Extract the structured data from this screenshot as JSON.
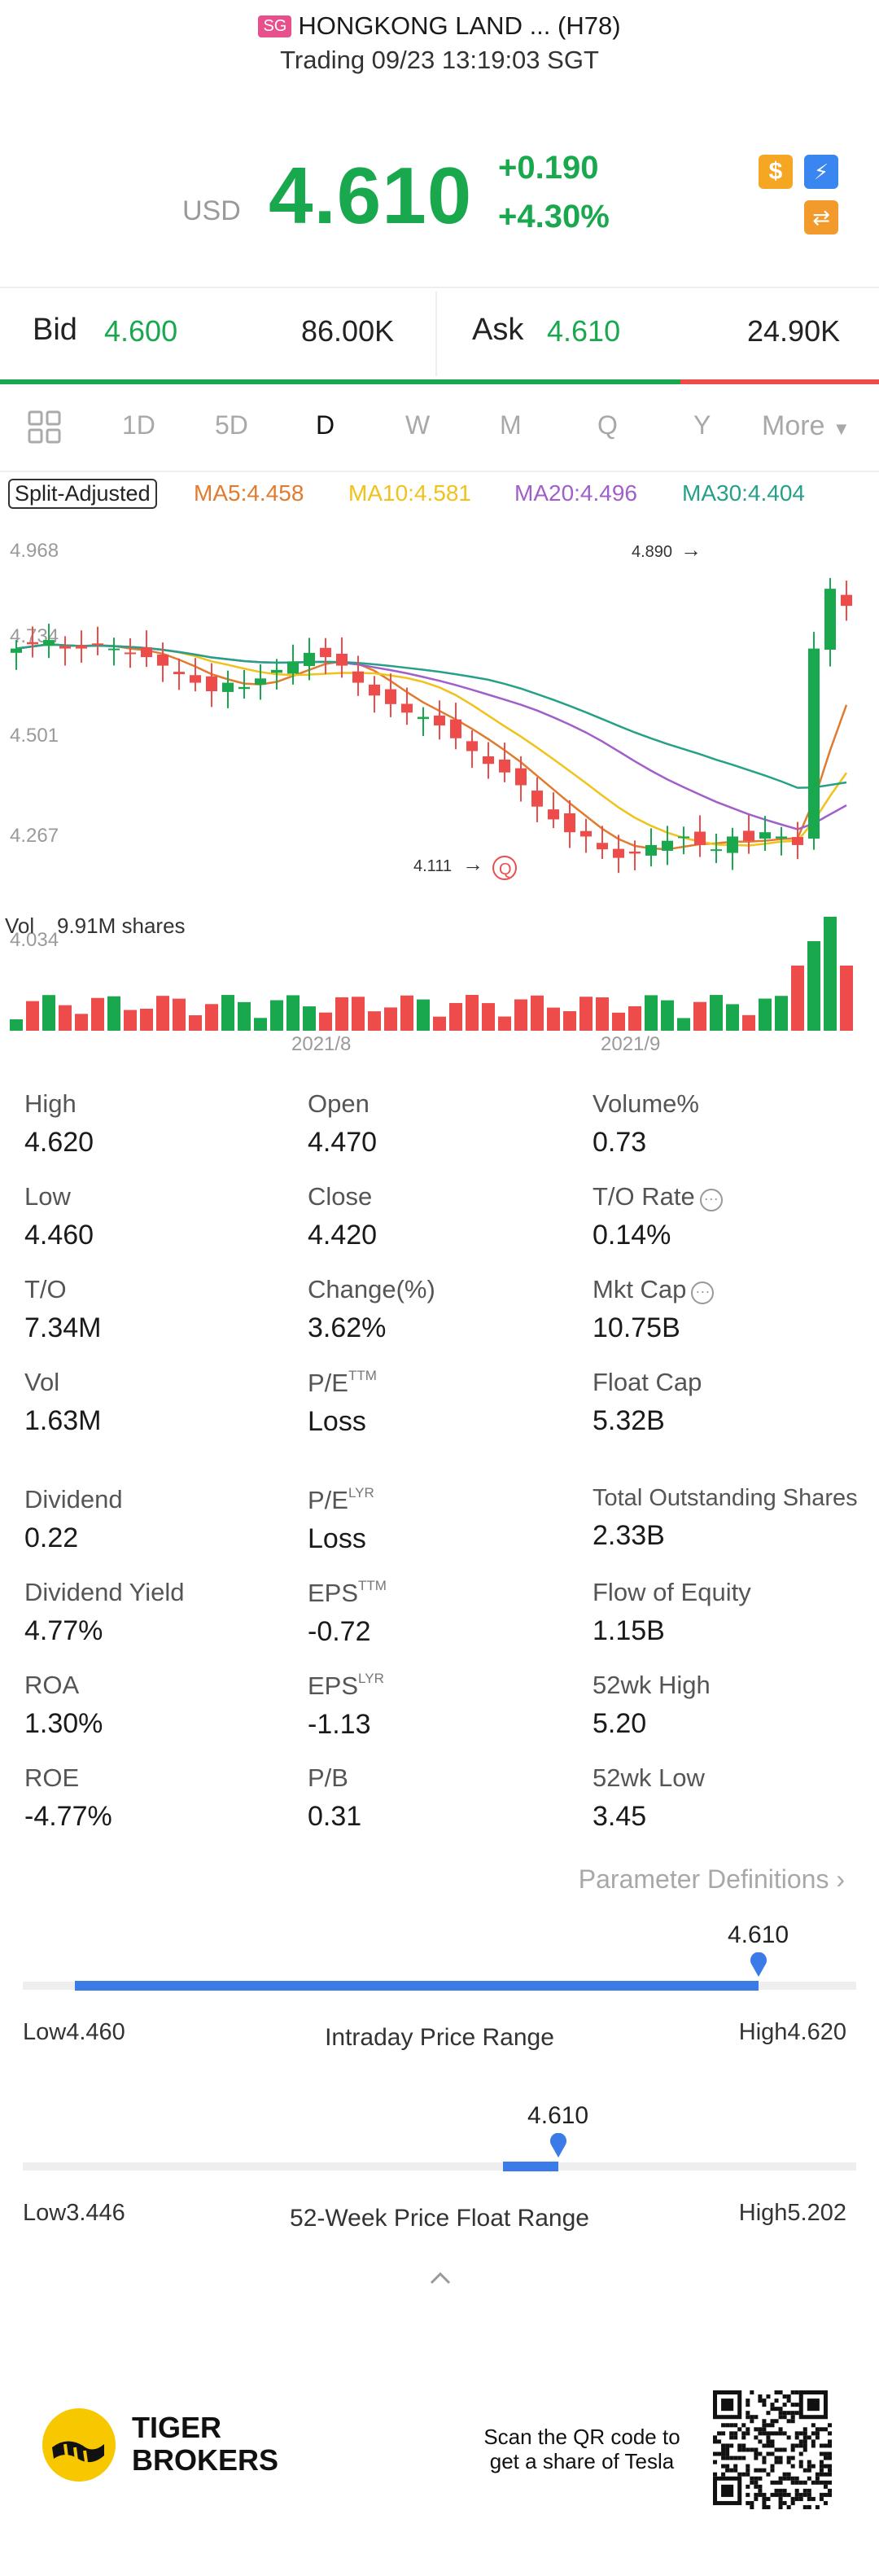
{
  "header": {
    "market_badge": "SG",
    "title": "HONGKONG LAND ... (H78)",
    "subtitle": "Trading 09/23 13:19:03 SGT"
  },
  "quote": {
    "currency": "USD",
    "price": "4.610",
    "change": "+0.190",
    "change_pct": "+4.30%",
    "icons": [
      "dollar-icon",
      "flash-icon",
      "swap-icon"
    ]
  },
  "bidask": {
    "bid_label": "Bid",
    "bid_price": "4.600",
    "bid_size": "86.00K",
    "ask_label": "Ask",
    "ask_price": "4.610",
    "ask_size": "24.90K",
    "bid_share": 0.774
  },
  "tabs": {
    "items": [
      "1D",
      "5D",
      "D",
      "W",
      "M",
      "Q",
      "Y"
    ],
    "active": "D",
    "more": "More"
  },
  "chart_legend": {
    "split": "Split-Adjusted",
    "ma5": "MA5:4.458",
    "ma10": "MA10:4.581",
    "ma20": "MA20:4.496",
    "ma30": "MA30:4.404",
    "ma5_color": "#e07b2f",
    "ma10_color": "#f0c21b",
    "ma20_color": "#a05fc9",
    "ma30_color": "#27a08a"
  },
  "chart_data": {
    "type": "candlestick",
    "ylim": [
      4.034,
      4.968
    ],
    "y_ticks": [
      "4.968",
      "4.734",
      "4.501",
      "4.267",
      "4.034"
    ],
    "x_labels": [
      "2021/8",
      "2021/9"
    ],
    "annotations": {
      "high": "4.890",
      "low": "4.111",
      "marker": "Q"
    },
    "volume_label": "Vol",
    "volume_value": "9.91M shares",
    "up_color": "#1aa84f",
    "down_color": "#ee4b4b"
  },
  "stats": {
    "high_label": "High",
    "high": "4.620",
    "open_label": "Open",
    "open": "4.470",
    "volpct_label": "Volume%",
    "volpct": "0.73",
    "low_label": "Low",
    "low": "4.460",
    "close_label": "Close",
    "close": "4.420",
    "torate_label": "T/O Rate",
    "torate": "0.14%",
    "to_label": "T/O",
    "to": "7.34M",
    "chgpct_label": "Change(%)",
    "chgpct": "3.62%",
    "mktcap_label": "Mkt Cap",
    "mktcap": "10.75B",
    "vol_label": "Vol",
    "vol": "1.63M",
    "pe_ttm_label": "P/E",
    "pe_ttm_sup": "TTM",
    "pe_ttm": "Loss",
    "floatcap_label": "Float Cap",
    "floatcap": "5.32B",
    "dividend_label": "Dividend",
    "dividend": "0.22",
    "pe_lyr_label": "P/E",
    "pe_lyr_sup": "LYR",
    "pe_lyr": "Loss",
    "tos_label": "Total Outstanding Shares",
    "tos": "2.33B",
    "divyield_label": "Dividend Yield",
    "divyield": "4.77%",
    "eps_ttm_label": "EPS",
    "eps_ttm_sup": "TTM",
    "eps_ttm": "-0.72",
    "foe_label": "Flow of Equity",
    "foe": "1.15B",
    "roa_label": "ROA",
    "roa": "1.30%",
    "eps_lyr_label": "EPS",
    "eps_lyr_sup": "LYR",
    "eps_lyr": "-1.13",
    "wk52h_label": "52wk High",
    "wk52h": "5.20",
    "roe_label": "ROE",
    "roe": "-4.77%",
    "pb_label": "P/B",
    "pb": "0.31",
    "wk52l_label": "52wk Low",
    "wk52l": "3.45",
    "param_def": "Parameter Definitions"
  },
  "intraday_range": {
    "current": "4.610",
    "low": "Low4.460",
    "high": "High4.620",
    "title": "Intraday Price Range",
    "position": 0.9375
  },
  "week52_range": {
    "current": "4.610",
    "low": "Low3.446",
    "high": "High5.202",
    "title": "52-Week Price Float Range",
    "position": 0.663
  },
  "footer": {
    "brand_line1": "TIGER",
    "brand_line2": "BROKERS",
    "qr_text_line1": "Scan the QR code to",
    "qr_text_line2": "get a share of Tesla"
  }
}
